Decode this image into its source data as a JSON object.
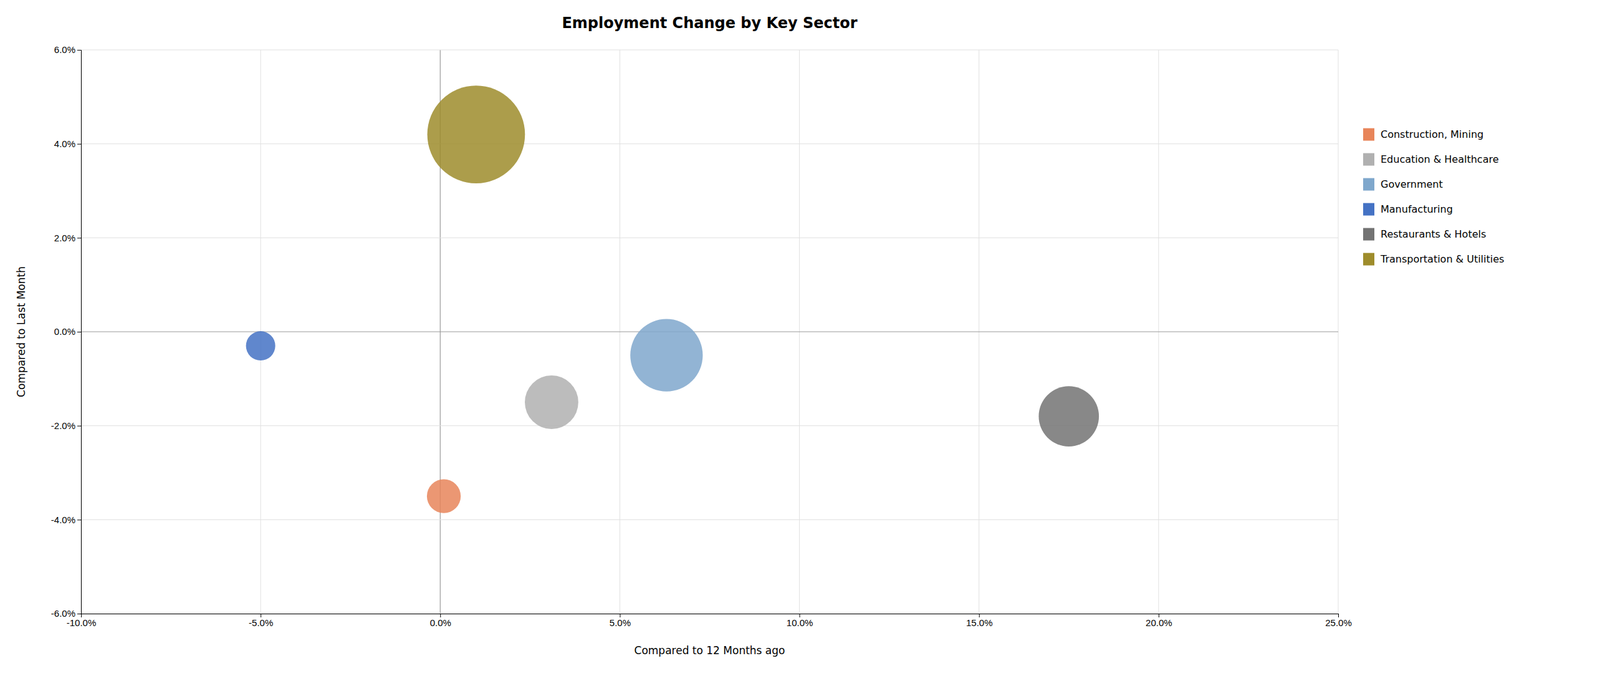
{
  "chart_data": {
    "type": "scatter",
    "title": "Employment Change by Key Sector",
    "x_label": "Compared to 12 Months ago",
    "y_label": "Compared to Last Month",
    "xlim": [
      -0.1,
      0.25
    ],
    "ylim": [
      -0.06,
      0.06
    ],
    "xticks": [
      {
        "value": -0.1,
        "label": "-10.0%"
      },
      {
        "value": -0.05,
        "label": "-5.0%"
      },
      {
        "value": 0.0,
        "label": "0.0%"
      },
      {
        "value": 0.05,
        "label": "5.0%"
      },
      {
        "value": 0.1,
        "label": "10.0%"
      },
      {
        "value": 0.15,
        "label": "15.0%"
      },
      {
        "value": 0.2,
        "label": "20.0%"
      },
      {
        "value": 0.25,
        "label": "25.0%"
      }
    ],
    "yticks": [
      {
        "value": -0.06,
        "label": "-6.0%"
      },
      {
        "value": -0.04,
        "label": "-4.0%"
      },
      {
        "value": -0.02,
        "label": "-2.0%"
      },
      {
        "value": 0.0,
        "label": "0.0%"
      },
      {
        "value": 0.02,
        "label": "2.0%"
      },
      {
        "value": 0.04,
        "label": "4.0%"
      },
      {
        "value": 0.06,
        "label": "6.0%"
      }
    ],
    "grid": true,
    "legend": "right",
    "series": [
      {
        "name": "Construction, Mining",
        "color": "#E8855A",
        "x": [
          0.001
        ],
        "values": [
          -0.035
        ],
        "size": [
          1200
        ]
      },
      {
        "name": "Education & Healthcare",
        "color": "#B0B0B0",
        "x": [
          0.031
        ],
        "values": [
          -0.015
        ],
        "size": [
          3000
        ]
      },
      {
        "name": "Government",
        "color": "#7FA7CC",
        "x": [
          0.063
        ],
        "values": [
          -0.005
        ],
        "size": [
          5500
        ]
      },
      {
        "name": "Manufacturing",
        "color": "#4472C4",
        "x": [
          -0.05
        ],
        "values": [
          -0.003
        ],
        "size": [
          900
        ]
      },
      {
        "name": "Restaurants & Hotels",
        "color": "#737373",
        "x": [
          0.175
        ],
        "values": [
          -0.018
        ],
        "size": [
          3800
        ]
      },
      {
        "name": "Transportation & Utilities",
        "color": "#9E8C2B",
        "x": [
          0.01
        ],
        "values": [
          0.042
        ],
        "size": [
          10000
        ]
      }
    ]
  }
}
